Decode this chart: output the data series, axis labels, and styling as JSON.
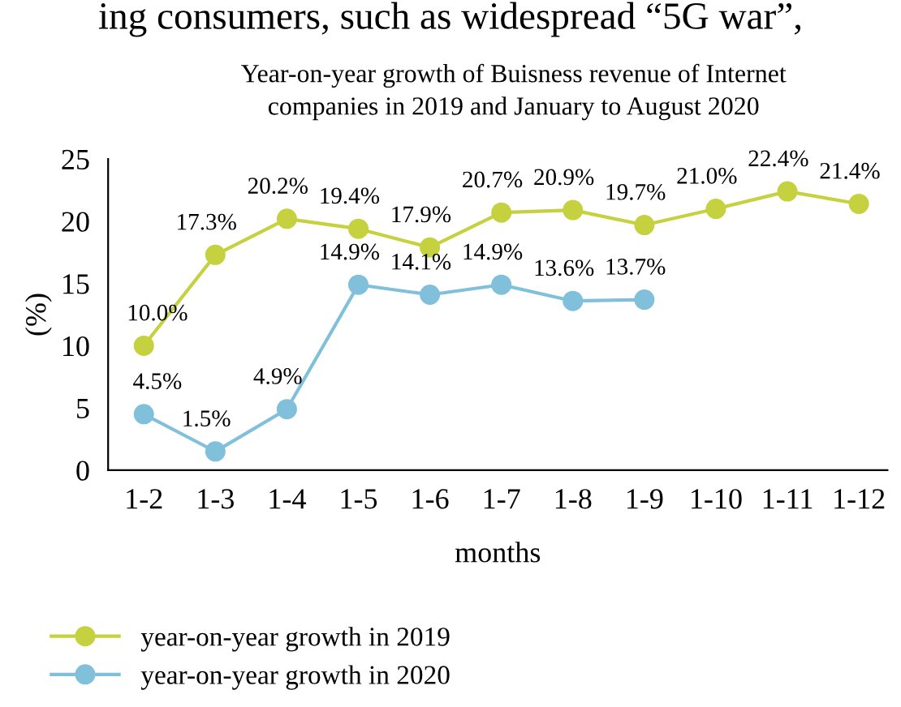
{
  "chart_data": {
    "type": "line",
    "title": "Year-on-year growth of Buisness revenue of Internet\ncompanies in 2019 and January to August 2020",
    "annotations": [
      "ing consumers, such as widespread “5G war”,"
    ],
    "xlabel": "months",
    "ylabel": "(%)",
    "categories": [
      "1-2",
      "1-3",
      "1-4",
      "1-5",
      "1-6",
      "1-7",
      "1-8",
      "1-9",
      "1-10",
      "1-11",
      "1-12"
    ],
    "series": [
      {
        "name": "year-on-year growth in 2019",
        "color": "#c5d13e",
        "values": [
          10.0,
          17.3,
          20.2,
          19.4,
          17.9,
          20.7,
          20.9,
          19.7,
          21.0,
          22.4,
          21.4
        ],
        "value_labels": [
          "10.0%",
          "17.3%",
          "20.2%",
          "19.4%",
          "17.9%",
          "20.7%",
          "20.9%",
          "19.7%",
          "21.0%",
          "22.4%",
          "21.4%"
        ]
      },
      {
        "name": "year-on-year growth in 2020",
        "color": "#80c0da",
        "values": [
          4.5,
          1.5,
          4.9,
          14.9,
          14.1,
          14.9,
          13.6,
          13.7,
          null,
          null,
          null
        ],
        "value_labels": [
          "4.5%",
          "1.5%",
          "4.9%",
          "14.9%",
          "14.1%",
          "14.9%",
          "13.6%",
          "13.7%",
          null,
          null,
          null
        ]
      }
    ],
    "ylim": [
      0,
      25
    ],
    "yticks": [
      0,
      5,
      10,
      15,
      20,
      25
    ],
    "grid": false,
    "legend": "bottom left",
    "marker": "circle",
    "line_style": "solid"
  }
}
